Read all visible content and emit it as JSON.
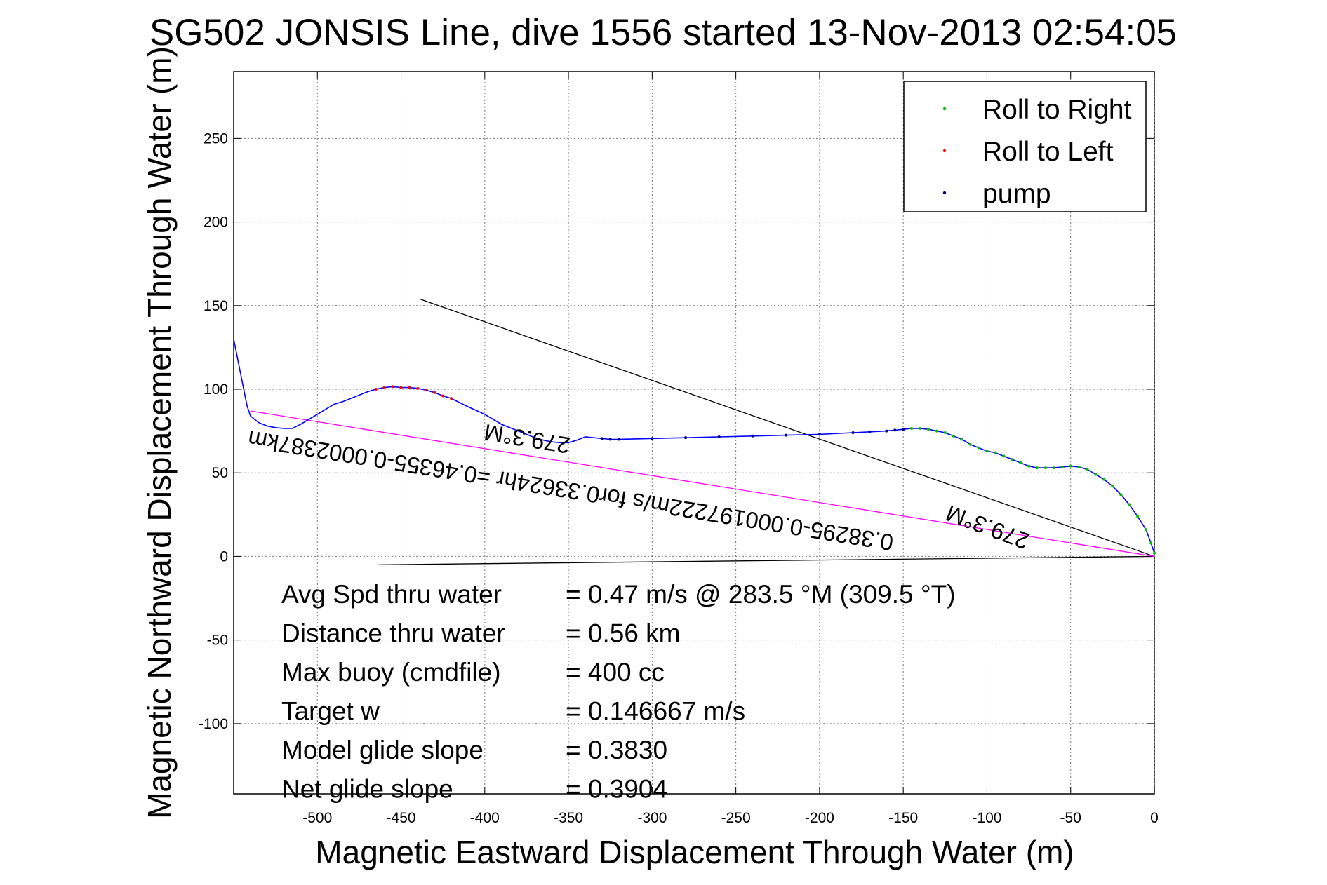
{
  "chart_data": {
    "type": "line",
    "title": "SG502 JONSIS Line, dive 1556 started 13-Nov-2013 02:54:05",
    "xlabel": "Magnetic Eastward Displacement Through Water (m)",
    "ylabel": "Magnetic Northward Displacement Through Water (m)",
    "xlim": [
      -550,
      0
    ],
    "ylim": [
      -142,
      290
    ],
    "xticks": [
      -500,
      -450,
      -400,
      -350,
      -300,
      -250,
      -200,
      -150,
      -100,
      -50,
      0
    ],
    "yticks": [
      -100,
      -50,
      0,
      50,
      100,
      150,
      200,
      250
    ],
    "grid": true,
    "legend_position": "top-right",
    "legend": [
      {
        "label": "Roll to Right",
        "color": "#00c000"
      },
      {
        "label": "Roll to Left",
        "color": "#ff0000"
      },
      {
        "label": "pump",
        "color": "#000080"
      }
    ],
    "track": {
      "color": "#0000ff",
      "x": [
        0,
        -2,
        -5,
        -10,
        -15,
        -20,
        -25,
        -30,
        -35,
        -40,
        -45,
        -50,
        -55,
        -60,
        -65,
        -70,
        -75,
        -80,
        -85,
        -90,
        -95,
        -100,
        -105,
        -110,
        -115,
        -120,
        -125,
        -130,
        -135,
        -140,
        -145,
        -150,
        -155,
        -160,
        -170,
        -180,
        -200,
        -220,
        -240,
        -260,
        -280,
        -300,
        -320,
        -325,
        -330,
        -335,
        -340,
        -345,
        -350,
        -355,
        -360,
        -365,
        -370,
        -380,
        -390,
        -395,
        -400,
        -410,
        -415,
        -420,
        -425,
        -430,
        -435,
        -440,
        -445,
        -450,
        -455,
        -460,
        -465,
        -470,
        -475,
        -480,
        -485,
        -490,
        -495,
        -500,
        -505,
        -510,
        -515,
        -520,
        -525,
        -530,
        -535,
        -540,
        -542,
        -544,
        -546,
        -548,
        -549,
        -550
      ],
      "y": [
        2,
        8,
        16,
        24,
        31,
        37,
        42,
        46,
        49,
        52,
        53.5,
        54,
        53.5,
        53,
        53,
        53,
        54,
        56,
        58,
        60,
        62,
        63,
        65,
        67,
        70,
        72,
        74,
        75,
        76,
        76.5,
        76.5,
        76,
        75.5,
        75,
        74.5,
        74,
        73,
        72.5,
        72,
        71.5,
        71,
        70.5,
        70,
        70,
        70.5,
        71,
        71.5,
        69.5,
        68,
        68,
        68.5,
        69.5,
        71,
        75,
        79,
        82,
        85,
        89.5,
        92,
        94.5,
        96,
        98,
        99.5,
        100.5,
        101,
        101,
        101.5,
        101,
        100,
        98.5,
        96.5,
        94.5,
        92.5,
        91,
        88,
        85,
        82,
        79,
        76.5,
        76.5,
        77,
        78,
        80,
        84,
        90,
        100,
        110,
        120,
        125,
        130
      ]
    },
    "roll_right_x_range": [
      -150,
      0
    ],
    "roll_left_x_range": [
      -465,
      -420
    ],
    "pump_x_range": [
      -330,
      -150
    ],
    "lines": [
      {
        "name": "line-a",
        "color": "#000000",
        "x": [
          -439,
          0
        ],
        "y": [
          154,
          0
        ]
      },
      {
        "name": "line-b",
        "color": "#000000",
        "x": [
          -464,
          0
        ],
        "y": [
          -5,
          0
        ]
      },
      {
        "name": "line-c",
        "color": "#ff00ff",
        "x": [
          -540,
          0
        ],
        "y": [
          87,
          0
        ]
      }
    ],
    "annotations": [
      {
        "text": "0.38295-0.000197222m/s for0.33624hr =0.46355-0.0002387km",
        "x": -348,
        "y": 44,
        "angle_deg": 189.2
      },
      {
        "text": "279.3°M",
        "x": -374,
        "y": 75,
        "angle_deg": 189.2
      },
      {
        "text": "279.3°M",
        "x": -98,
        "y": 22,
        "angle_deg": 200.5
      }
    ],
    "stats": [
      {
        "label": "Avg Spd thru water",
        "value": "=  0.47 m/s @ 283.5 °M (309.5 °T)"
      },
      {
        "label": "Distance thru water",
        "value": "=  0.56 km"
      },
      {
        "label": "Max buoy (cmdfile)",
        "value": "= 400 cc"
      },
      {
        "label": "Target w",
        "value": "= 0.146667 m/s"
      },
      {
        "label": "Model glide slope",
        "value": "= 0.3830"
      },
      {
        "label": "Net glide slope",
        "value": "= 0.3904"
      }
    ]
  }
}
